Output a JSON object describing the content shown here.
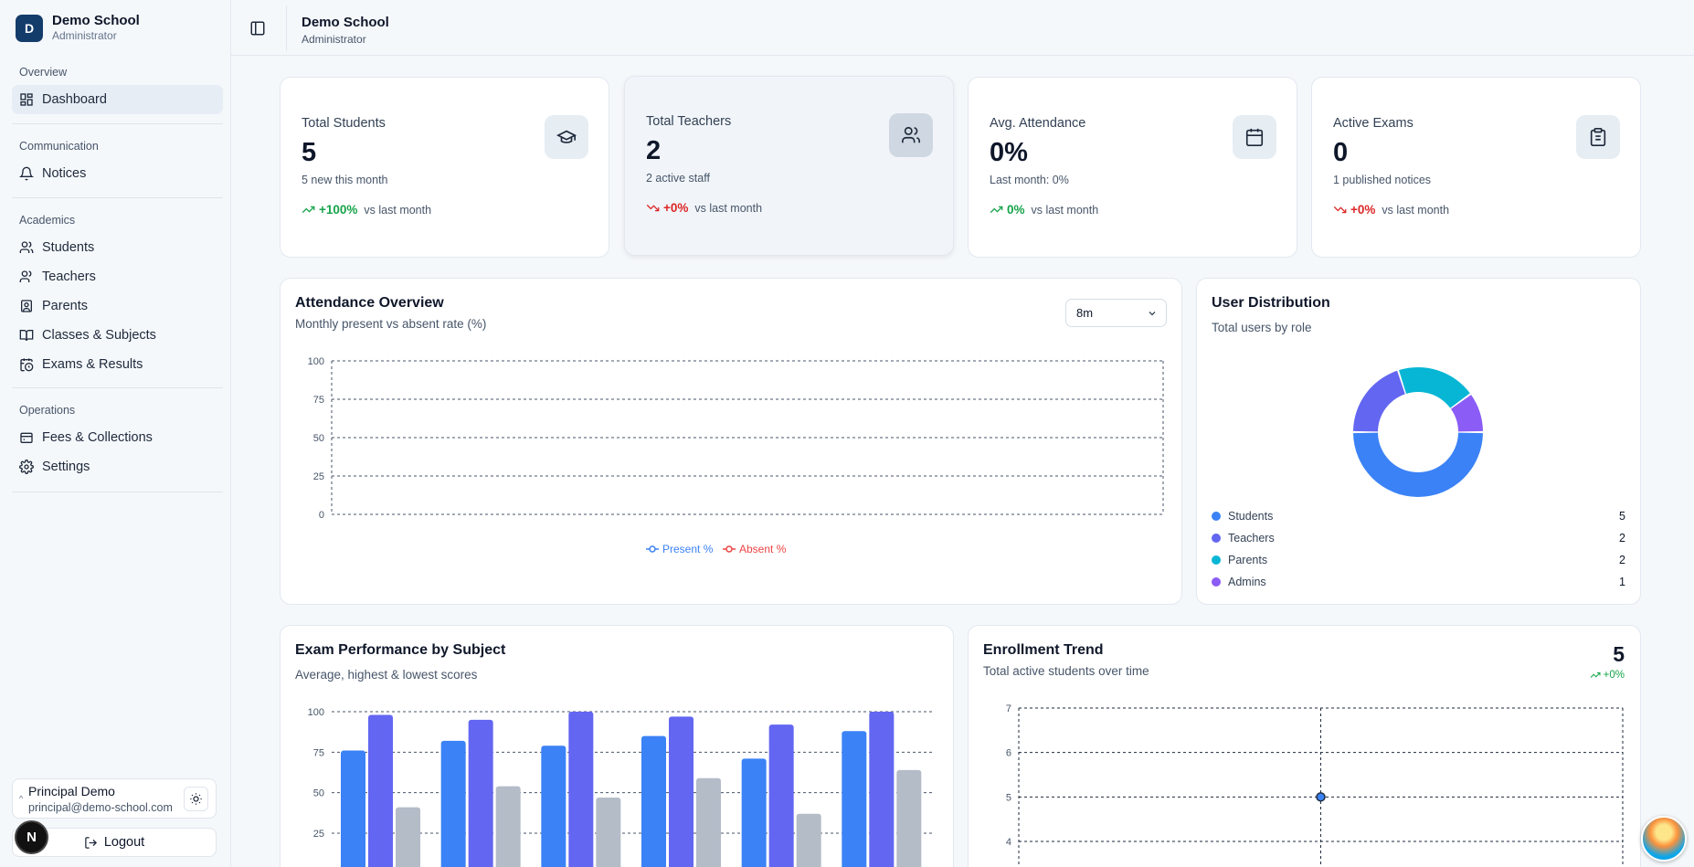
{
  "brand": {
    "initial": "D",
    "name": "Demo School",
    "role": "Administrator"
  },
  "nav": {
    "overview": {
      "title": "Overview",
      "items": [
        {
          "label": "Dashboard",
          "icon": "dashboard-icon"
        }
      ]
    },
    "communication": {
      "title": "Communication",
      "items": [
        {
          "label": "Notices",
          "icon": "bell-icon"
        }
      ]
    },
    "academics": {
      "title": "Academics",
      "items": [
        {
          "label": "Students",
          "icon": "users-icon"
        },
        {
          "label": "Teachers",
          "icon": "user-icon"
        },
        {
          "label": "Parents",
          "icon": "contact-icon"
        },
        {
          "label": "Classes & Subjects",
          "icon": "book-icon"
        },
        {
          "label": "Exams & Results",
          "icon": "calendar-clock-icon"
        }
      ]
    },
    "operations": {
      "title": "Operations",
      "items": [
        {
          "label": "Fees & Collections",
          "icon": "wallet-icon"
        },
        {
          "label": "Settings",
          "icon": "gear-icon"
        }
      ]
    }
  },
  "user": {
    "name": "Principal Demo",
    "email": "principal@demo-school.com",
    "logout_label": "Logout",
    "badge": "N"
  },
  "topbar": {
    "title": "Demo School",
    "subtitle": "Administrator"
  },
  "stats": [
    {
      "label": "Total Students",
      "value": "5",
      "note": "5 new this month",
      "trend": "+100%",
      "direction": "up",
      "vs": "vs last month",
      "icon": "graduation-cap-icon"
    },
    {
      "label": "Total Teachers",
      "value": "2",
      "note": "2 active staff",
      "trend": "+0%",
      "direction": "down",
      "vs": "vs last month",
      "icon": "users-icon"
    },
    {
      "label": "Avg. Attendance",
      "value": "0%",
      "note": "Last month: 0%",
      "trend": "0%",
      "direction": "up",
      "vs": "vs last month",
      "icon": "calendar-icon"
    },
    {
      "label": "Active Exams",
      "value": "0",
      "note": "1 published notices",
      "trend": "+0%",
      "direction": "down",
      "vs": "vs last month",
      "icon": "clipboard-icon"
    }
  ],
  "attendance": {
    "title": "Attendance Overview",
    "subtitle": "Monthly present vs absent rate (%)",
    "range_selected": "8m",
    "legend": [
      "Present %",
      "Absent %"
    ]
  },
  "distribution": {
    "title": "User Distribution",
    "subtitle": "Total users by role"
  },
  "exam": {
    "title": "Exam Performance by Subject",
    "subtitle": "Average, highest & lowest scores"
  },
  "enrollment": {
    "title": "Enrollment Trend",
    "subtitle": "Total active students over time",
    "value": "5",
    "change": "+0%"
  },
  "colors": {
    "present": "#3b82f6",
    "absent": "#ef4444",
    "average": "#3b82f6",
    "highest": "#6366f1",
    "lowest": "#b4bcc8",
    "accent": "#143c6b",
    "up": "#16a34a",
    "down": "#dc2626"
  },
  "chart_data": [
    {
      "type": "line",
      "title": "Attendance Overview",
      "subtitle": "Monthly present vs absent rate (%)",
      "ylim": [
        0,
        100
      ],
      "yticks": [
        0,
        25,
        50,
        75,
        100
      ],
      "series": [
        {
          "name": "Present %",
          "values": []
        },
        {
          "name": "Absent %",
          "values": []
        }
      ],
      "grid": true,
      "legend": "bottom"
    },
    {
      "type": "pie",
      "title": "User Distribution",
      "subtitle": "Total users by role",
      "categories": [
        "Students",
        "Teachers",
        "Parents",
        "Admins"
      ],
      "values": [
        5,
        2,
        2,
        1
      ],
      "colors": [
        "#3b82f6",
        "#6366f1",
        "#06b6d4",
        "#8b5cf6"
      ],
      "legend": "bottom"
    },
    {
      "type": "bar",
      "title": "Exam Performance by Subject",
      "subtitle": "Average, highest & lowest scores",
      "ylim": [
        0,
        100
      ],
      "yticks": [
        25,
        50,
        75,
        100
      ],
      "series": [
        {
          "name": "Average",
          "values": [
            76,
            82,
            79,
            85,
            71,
            88
          ]
        },
        {
          "name": "Highest",
          "values": [
            98,
            95,
            100,
            97,
            92,
            100
          ]
        },
        {
          "name": "Lowest",
          "values": [
            41,
            54,
            47,
            59,
            37,
            64
          ]
        }
      ],
      "grid": true
    },
    {
      "type": "line",
      "title": "Enrollment Trend",
      "subtitle": "Total active students over time",
      "ylim": [
        3.5,
        7
      ],
      "yticks": [
        4,
        5,
        6,
        7
      ],
      "series": [
        {
          "values": [
            5
          ]
        }
      ],
      "grid": true
    }
  ]
}
